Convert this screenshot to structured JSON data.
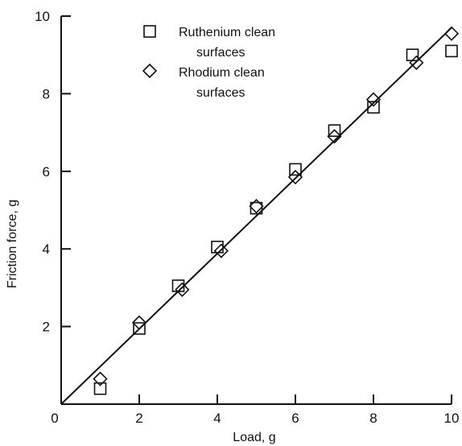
{
  "chart_data": {
    "type": "scatter",
    "xlabel": "Load, g",
    "ylabel": "Friction force, g",
    "xlim": [
      0,
      10
    ],
    "ylim": [
      0,
      10
    ],
    "x_ticks": [
      0,
      2,
      4,
      6,
      8,
      10
    ],
    "y_ticks": [
      2,
      4,
      6,
      8,
      10
    ],
    "grid": false,
    "legend_position": "top-left",
    "series": [
      {
        "name": "Ruthenium clean surfaces",
        "marker": "square",
        "points": [
          {
            "x": 1.0,
            "y": 0.4
          },
          {
            "x": 2.0,
            "y": 1.95
          },
          {
            "x": 3.0,
            "y": 3.05
          },
          {
            "x": 4.0,
            "y": 4.05
          },
          {
            "x": 5.0,
            "y": 5.05
          },
          {
            "x": 6.0,
            "y": 6.05
          },
          {
            "x": 7.0,
            "y": 7.05
          },
          {
            "x": 8.0,
            "y": 7.65
          },
          {
            "x": 9.0,
            "y": 9.0
          },
          {
            "x": 10.0,
            "y": 9.1
          }
        ]
      },
      {
        "name": "Rhodium clean surfaces",
        "marker": "diamond",
        "points": [
          {
            "x": 1.0,
            "y": 0.65
          },
          {
            "x": 2.0,
            "y": 2.1
          },
          {
            "x": 3.1,
            "y": 2.95
          },
          {
            "x": 4.1,
            "y": 3.95
          },
          {
            "x": 5.0,
            "y": 5.1
          },
          {
            "x": 6.0,
            "y": 5.85
          },
          {
            "x": 7.0,
            "y": 6.9
          },
          {
            "x": 8.0,
            "y": 7.85
          },
          {
            "x": 9.1,
            "y": 8.8
          },
          {
            "x": 10.0,
            "y": 9.55
          }
        ]
      }
    ],
    "fit_line": {
      "from": [
        0,
        0
      ],
      "to": [
        10,
        9.7
      ]
    }
  }
}
